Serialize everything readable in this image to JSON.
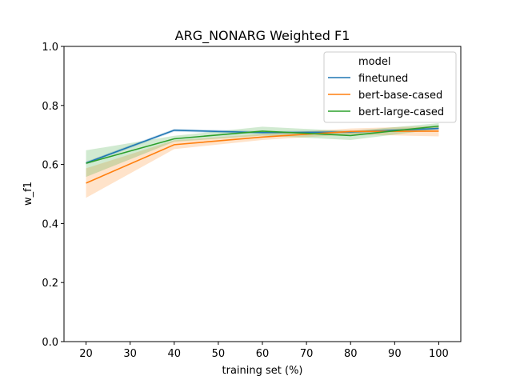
{
  "chart_data": {
    "type": "line",
    "title": "ARG_NONARG Weighted F1",
    "xlabel": "training set (%)",
    "ylabel": "w_f1",
    "x": [
      20,
      40,
      60,
      80,
      100
    ],
    "xlim": [
      15,
      105
    ],
    "ylim": [
      0.0,
      1.0
    ],
    "xticks": [
      20,
      30,
      40,
      50,
      60,
      70,
      80,
      90,
      100
    ],
    "yticks": [
      0.0,
      0.2,
      0.4,
      0.6,
      0.8,
      1.0
    ],
    "xtick_labels": [
      "20",
      "30",
      "40",
      "50",
      "60",
      "70",
      "80",
      "90",
      "100"
    ],
    "ytick_labels": [
      "0.0",
      "0.2",
      "0.4",
      "0.6",
      "0.8",
      "1.0"
    ],
    "grid": false,
    "legend": {
      "title": "model",
      "position": "top-right"
    },
    "series": [
      {
        "name": "finetuned",
        "color": "#1f77b4",
        "values": [
          0.605,
          0.716,
          0.708,
          0.71,
          0.722
        ],
        "ci_lower": [
          0.6,
          0.711,
          0.703,
          0.705,
          0.717
        ],
        "ci_upper": [
          0.61,
          0.721,
          0.713,
          0.715,
          0.727
        ]
      },
      {
        "name": "bert-base-cased",
        "color": "#ff7f0e",
        "values": [
          0.537,
          0.667,
          0.693,
          0.712,
          0.713
        ],
        "ci_lower": [
          0.487,
          0.652,
          0.683,
          0.702,
          0.695
        ],
        "ci_upper": [
          0.587,
          0.682,
          0.703,
          0.722,
          0.731
        ]
      },
      {
        "name": "bert-large-cased",
        "color": "#2ca02c",
        "values": [
          0.604,
          0.687,
          0.713,
          0.698,
          0.73
        ],
        "ci_lower": [
          0.558,
          0.677,
          0.698,
          0.683,
          0.72
        ],
        "ci_upper": [
          0.648,
          0.697,
          0.728,
          0.713,
          0.74
        ]
      }
    ]
  }
}
